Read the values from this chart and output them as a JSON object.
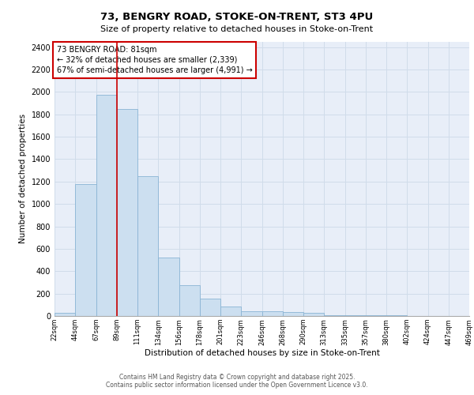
{
  "title": "73, BENGRY ROAD, STOKE-ON-TRENT, ST3 4PU",
  "subtitle": "Size of property relative to detached houses in Stoke-on-Trent",
  "xlabel": "Distribution of detached houses by size in Stoke-on-Trent",
  "ylabel": "Number of detached properties",
  "bar_values": [
    25,
    1175,
    1975,
    1850,
    1250,
    520,
    275,
    155,
    85,
    45,
    45,
    35,
    30,
    5,
    5,
    5,
    5,
    2,
    0,
    0
  ],
  "categories": [
    "22sqm",
    "44sqm",
    "67sqm",
    "89sqm",
    "111sqm",
    "134sqm",
    "156sqm",
    "178sqm",
    "201sqm",
    "223sqm",
    "246sqm",
    "268sqm",
    "290sqm",
    "313sqm",
    "335sqm",
    "357sqm",
    "380sqm",
    "402sqm",
    "424sqm",
    "447sqm",
    "469sqm"
  ],
  "bar_color": "#ccdff0",
  "bar_edge_color": "#8ab4d4",
  "grid_color": "#d0dcea",
  "background_color": "#e8eef8",
  "annotation_text": "73 BENGRY ROAD: 81sqm\n← 32% of detached houses are smaller (2,339)\n67% of semi-detached houses are larger (4,991) →",
  "annotation_box_color": "#ffffff",
  "annotation_border_color": "#cc0000",
  "vline_color": "#cc0000",
  "vline_x": 2.5,
  "ylim": [
    0,
    2450
  ],
  "yticks": [
    0,
    200,
    400,
    600,
    800,
    1000,
    1200,
    1400,
    1600,
    1800,
    2000,
    2200,
    2400
  ],
  "footer_line1": "Contains HM Land Registry data © Crown copyright and database right 2025.",
  "footer_line2": "Contains public sector information licensed under the Open Government Licence v3.0."
}
